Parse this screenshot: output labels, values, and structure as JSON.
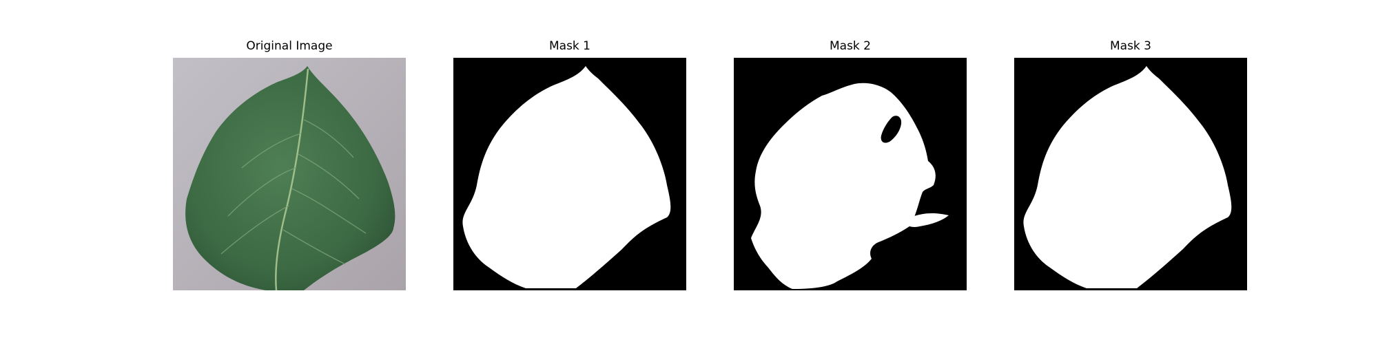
{
  "figure": {
    "panels": [
      {
        "title": "Original Image",
        "kind": "photo"
      },
      {
        "title": "Mask 1",
        "kind": "mask"
      },
      {
        "title": "Mask 2",
        "kind": "mask"
      },
      {
        "title": "Mask 3",
        "kind": "mask"
      }
    ]
  },
  "colors": {
    "background": "#ffffff",
    "mask_foreground": "#ffffff",
    "mask_background": "#000000",
    "photo_backdrop": "#bbb6bd",
    "leaf_green": "#3f6b44",
    "leaf_vein": "#9fbe8a"
  }
}
